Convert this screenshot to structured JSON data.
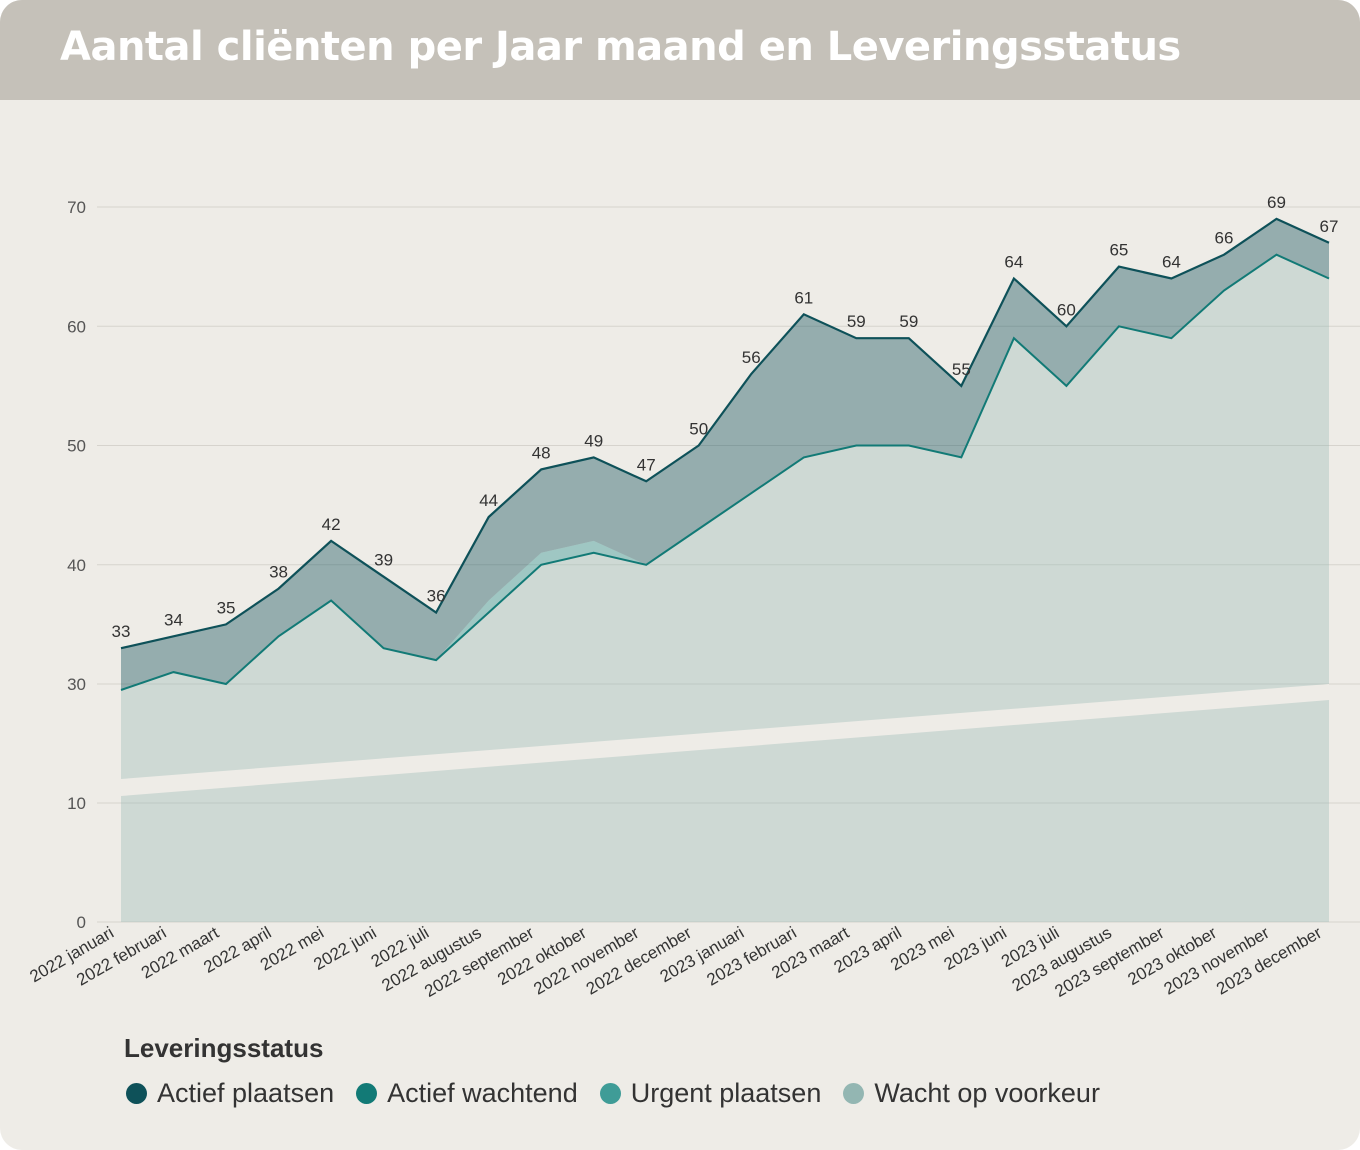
{
  "title": "Aantal cliënten per Jaar maand en Leveringsstatus",
  "legend": {
    "title": "Leveringsstatus",
    "items": [
      {
        "label": "Actief plaatsen",
        "color": "#0e5159"
      },
      {
        "label": "Actief wachtend",
        "color": "#127a76"
      },
      {
        "label": "Urgent plaatsen",
        "color": "#3f9c97"
      },
      {
        "label": "Wacht op voorkeur",
        "color": "#93b6b2"
      }
    ]
  },
  "chart_data": {
    "type": "area",
    "stacked": true,
    "title": "Aantal cliënten per Jaar maand en Leveringsstatus",
    "xlabel": "",
    "ylabel": "",
    "ylim": [
      0,
      70
    ],
    "yticks": [
      0,
      10,
      30,
      40,
      50,
      60,
      70
    ],
    "axis_break": "scale break between 10 and 30",
    "grid": true,
    "legend_position": "bottom-left",
    "categories": [
      "2022 januari",
      "2022 februari",
      "2022 maart",
      "2022 april",
      "2022 mei",
      "2022 juni",
      "2022 juli",
      "2022 augustus",
      "2022 september",
      "2022 oktober",
      "2022 november",
      "2022 december",
      "2023 januari",
      "2023 februari",
      "2023 maart",
      "2023 april",
      "2023 mei",
      "2023 juni",
      "2023 juli",
      "2023 augustus",
      "2023 september",
      "2023 oktober",
      "2023 november",
      "2023 december"
    ],
    "totals": [
      33,
      34,
      35,
      38,
      42,
      39,
      36,
      44,
      48,
      49,
      47,
      50,
      56,
      61,
      59,
      59,
      55,
      64,
      60,
      65,
      64,
      66,
      69,
      67
    ],
    "series": [
      {
        "name": "Wacht op voorkeur",
        "values": [
          29,
          31,
          30,
          34,
          37,
          33,
          32,
          36,
          40,
          41,
          40,
          43,
          46,
          49,
          50,
          50,
          49,
          59,
          55,
          60,
          59,
          63,
          66,
          64
        ]
      },
      {
        "name": "Urgent plaatsen",
        "values": [
          0,
          0,
          0,
          0,
          0,
          0,
          0,
          1,
          1,
          1,
          0,
          0,
          0,
          0,
          0,
          0,
          0,
          0,
          0,
          0,
          0,
          0,
          0,
          0
        ]
      },
      {
        "name": "Actief wachtend",
        "values": [
          0,
          0,
          0,
          0,
          0,
          0,
          0,
          0,
          0,
          0,
          0,
          0,
          0,
          0,
          0,
          0,
          0,
          0,
          0,
          0,
          0,
          0,
          0,
          0
        ]
      },
      {
        "name": "Actief plaatsen",
        "values": [
          4,
          3,
          5,
          4,
          5,
          6,
          4,
          7,
          7,
          7,
          7,
          7,
          10,
          12,
          9,
          9,
          6,
          5,
          5,
          5,
          5,
          3,
          3,
          3
        ]
      }
    ]
  }
}
